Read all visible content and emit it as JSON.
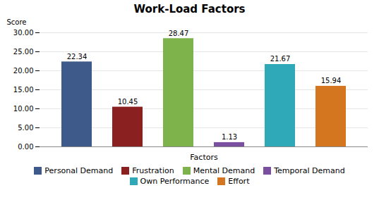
{
  "chart_data": {
    "type": "bar",
    "title": "Work-Load Factors",
    "xlabel": "Factors",
    "ylabel": "Score",
    "categories": [
      "Personal Demand",
      "Frustration",
      "Mental Demand",
      "Temporal Demand",
      "Own Performance",
      "Effort"
    ],
    "values": [
      22.34,
      10.45,
      28.47,
      1.13,
      21.67,
      15.94
    ],
    "colors": [
      "#3d5a8a",
      "#8b2020",
      "#7db34a",
      "#7b4fa0",
      "#2fa8b8",
      "#d47520"
    ],
    "ylim": [
      0,
      30
    ],
    "yticks": [
      {
        "value": 0,
        "label": "0.00"
      },
      {
        "value": 5,
        "label": "5.00"
      },
      {
        "value": 10,
        "label": "10.00"
      },
      {
        "value": 15,
        "label": "15.00"
      },
      {
        "value": 20,
        "label": "20.00"
      },
      {
        "value": 25,
        "label": "25.00"
      },
      {
        "value": 30,
        "label": "30.00"
      }
    ],
    "grid": true,
    "data_labels": true,
    "legend": "bottom",
    "tick_labels": "y"
  }
}
